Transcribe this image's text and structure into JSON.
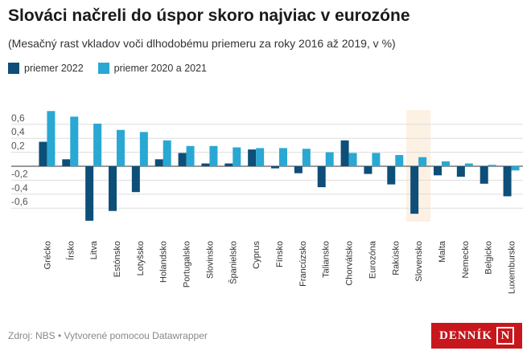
{
  "header": {
    "title": "Slováci načreli do úspor skoro najviac v eurozóne",
    "subtitle": "(Mesačný rast vkladov voči dlhodobému priemeru za roky 2016 až 2019, v %)"
  },
  "legend": {
    "items": [
      {
        "label": "priemer 2022",
        "color": "#0d4f78"
      },
      {
        "label": "priemer 2020 a 2021",
        "color": "#29a8d3"
      }
    ]
  },
  "footer": {
    "source": "Zdroj: NBS • Vytvorené pomocou Datawrapper"
  },
  "logo": {
    "text": "DENNÍK",
    "mark": "N"
  },
  "chart_data": {
    "type": "bar",
    "highlight_category": "Slovensko",
    "highlight_color": "#fdf1e3",
    "ylim": [
      -0.75,
      0.8
    ],
    "yticks": [
      {
        "value": 0.6,
        "label": "0,6"
      },
      {
        "value": 0.4,
        "label": "0,4"
      },
      {
        "value": 0.2,
        "label": "0,2"
      },
      {
        "value": 0,
        "label": ""
      },
      {
        "value": -0.2,
        "label": "-0,2"
      },
      {
        "value": -0.4,
        "label": "-0,4"
      },
      {
        "value": -0.6,
        "label": "-0,6"
      }
    ],
    "grid": true,
    "categories": [
      "Grécko",
      "Írsko",
      "Litva",
      "Estónsko",
      "Lotyšsko",
      "Holandsko",
      "Portugalsko",
      "Slovinsko",
      "Španielsko",
      "Cyprus",
      "Fínsko",
      "Francúzsko",
      "Taliansko",
      "Chorvátsko",
      "Eurozóna",
      "Rakúsko",
      "Slovensko",
      "Malta",
      "Nemecko",
      "Belgicko",
      "Luxembursko"
    ],
    "series": [
      {
        "name": "priemer 2022",
        "color": "#0d4f78",
        "values": [
          0.35,
          0.1,
          -0.78,
          -0.64,
          -0.37,
          0.1,
          0.19,
          0.04,
          0.04,
          0.24,
          -0.03,
          -0.1,
          -0.3,
          0.37,
          -0.11,
          -0.26,
          -0.68,
          -0.13,
          -0.15,
          -0.25,
          -0.43
        ]
      },
      {
        "name": "priemer 2020 a 2021",
        "color": "#29a8d3",
        "values": [
          0.79,
          0.71,
          0.61,
          0.52,
          0.49,
          0.37,
          0.29,
          0.29,
          0.27,
          0.26,
          0.26,
          0.25,
          0.2,
          0.19,
          0.19,
          0.16,
          0.13,
          0.07,
          0.04,
          0.02,
          -0.06
        ]
      }
    ]
  }
}
